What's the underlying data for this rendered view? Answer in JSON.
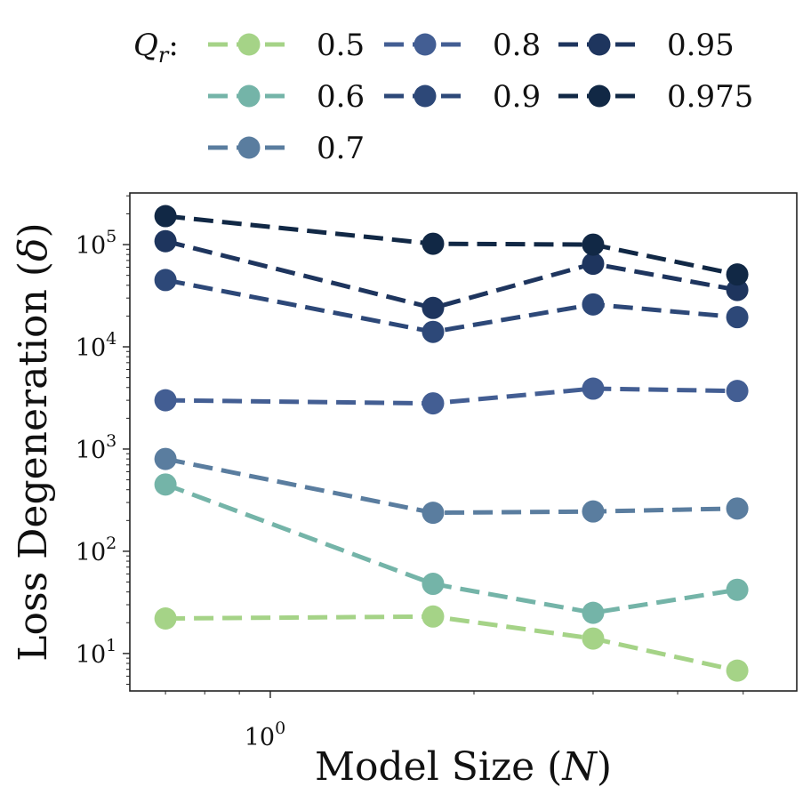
{
  "chart_data": {
    "type": "line",
    "xscale": "log",
    "yscale": "log",
    "xlabel": "Model Size (N)",
    "ylabel": "Loss Degeneration (δ)",
    "xlim": [
      0.62,
      6.0
    ],
    "ylim": [
      4.3,
      320000
    ],
    "x": [
      0.7,
      1.74,
      3.0,
      4.9
    ],
    "x_tick_label": {
      "base": "10",
      "exp": "0"
    },
    "y_tick_labels": [
      {
        "base": "10",
        "exp": "1",
        "value": 10
      },
      {
        "base": "10",
        "exp": "2",
        "value": 100
      },
      {
        "base": "10",
        "exp": "3",
        "value": 1000
      },
      {
        "base": "10",
        "exp": "4",
        "value": 10000
      },
      {
        "base": "10",
        "exp": "5",
        "value": 100000
      }
    ],
    "legend": {
      "title_main": "Q",
      "title_sub": "r",
      "title_suffix": ":",
      "placement": "top"
    },
    "series": [
      {
        "name": "0.5",
        "color": "#a5d387",
        "values": [
          22,
          23,
          14,
          6.8
        ]
      },
      {
        "name": "0.6",
        "color": "#74b4a8",
        "values": [
          450,
          48,
          25,
          42
        ]
      },
      {
        "name": "0.7",
        "color": "#5a7d9f",
        "values": [
          800,
          238,
          245,
          262
        ]
      },
      {
        "name": "0.8",
        "color": "#435e93",
        "values": [
          3000,
          2800,
          3900,
          3700
        ]
      },
      {
        "name": "0.9",
        "color": "#2d4878",
        "values": [
          45000,
          14000,
          26000,
          19500
        ]
      },
      {
        "name": "0.95",
        "color": "#1e355e",
        "values": [
          108000,
          24000,
          65000,
          36000
        ]
      },
      {
        "name": "0.975",
        "color": "#112845",
        "values": [
          190000,
          102000,
          100000,
          51000
        ]
      }
    ]
  }
}
